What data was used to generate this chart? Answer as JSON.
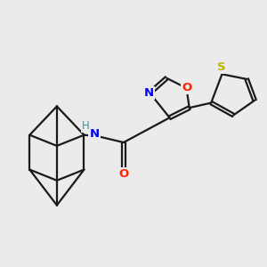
{
  "background_color": "#ebebeb",
  "bond_color": "#1a1a1a",
  "bond_lw": 1.6,
  "atom_colors": {
    "N_iso": "#0000ff",
    "O_iso": "#ff2200",
    "O_carb": "#ff2200",
    "S": "#b8b800",
    "N_amid": "#0000ee",
    "H": "#3399aa"
  },
  "figsize": [
    3.0,
    3.0
  ],
  "dpi": 100,
  "xlim": [
    -2.8,
    2.5
  ],
  "ylim": [
    -2.2,
    1.8
  ]
}
